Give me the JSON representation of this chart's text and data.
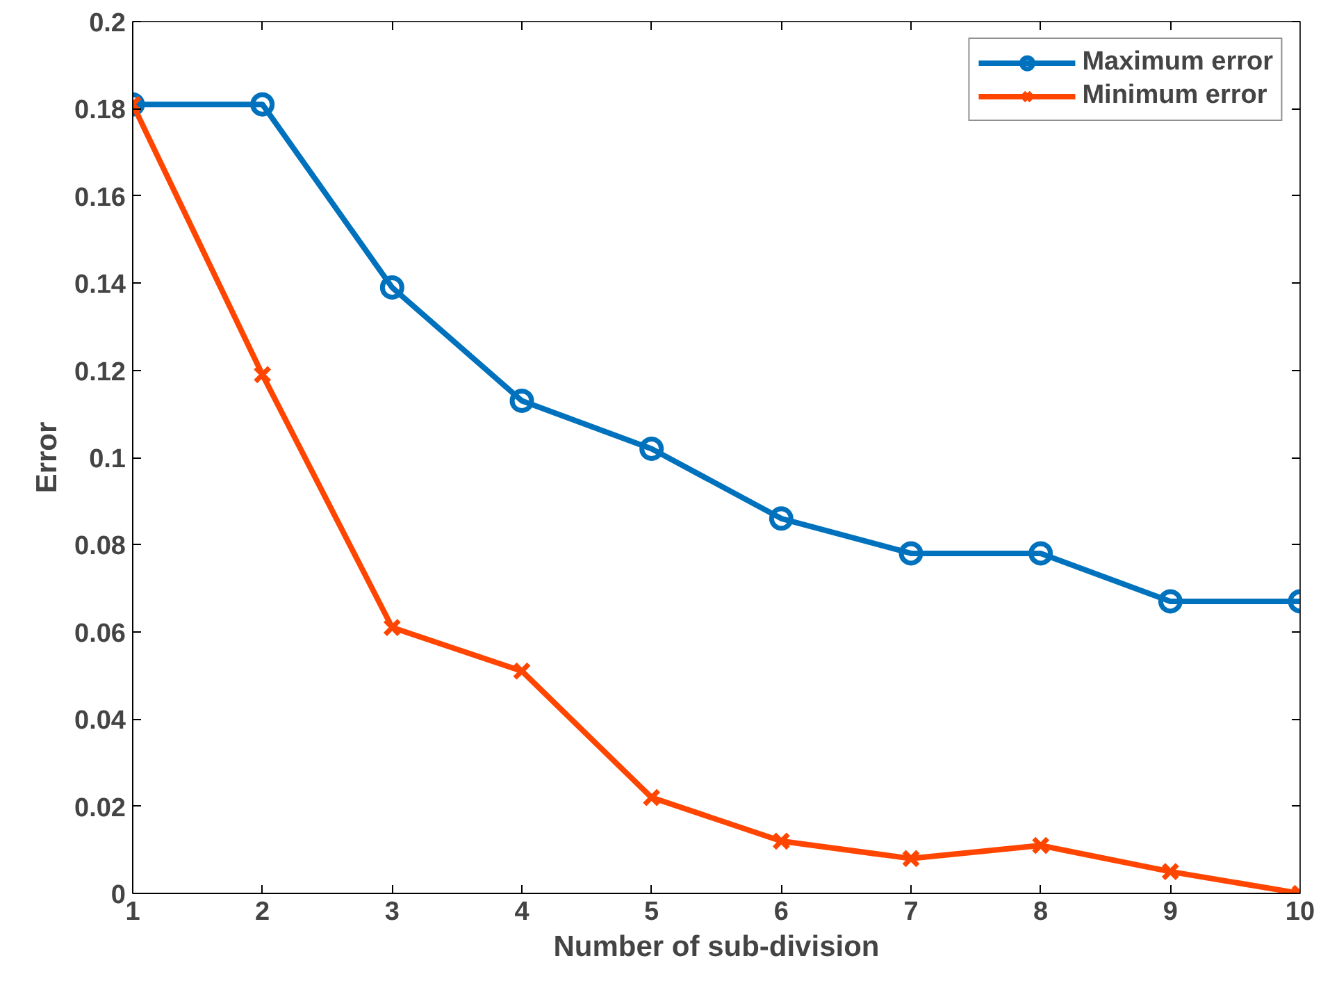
{
  "chart_data": {
    "type": "line",
    "xlabel": "Number of sub-division",
    "ylabel": "Error",
    "x": [
      1,
      2,
      3,
      4,
      5,
      6,
      7,
      8,
      9,
      10
    ],
    "series": [
      {
        "name": "Maximum error",
        "color": "#0072bd",
        "marker": "circle",
        "values": [
          0.181,
          0.181,
          0.139,
          0.113,
          0.102,
          0.086,
          0.078,
          0.078,
          0.067,
          0.067
        ]
      },
      {
        "name": "Minimum error",
        "color": "#ff4500",
        "marker": "cross",
        "values": [
          0.181,
          0.119,
          0.061,
          0.051,
          0.022,
          0.012,
          0.008,
          0.011,
          0.005,
          0.0
        ]
      }
    ],
    "xlim": [
      1,
      10
    ],
    "xticks": [
      1,
      2,
      3,
      4,
      5,
      6,
      7,
      8,
      9,
      10
    ],
    "ylim": [
      0,
      0.2
    ],
    "yticks": [
      0,
      0.02,
      0.04,
      0.06,
      0.08,
      0.1,
      0.12,
      0.14,
      0.16,
      0.18,
      0.2
    ],
    "grid": false,
    "legend": "top right",
    "line_style": "solid"
  }
}
